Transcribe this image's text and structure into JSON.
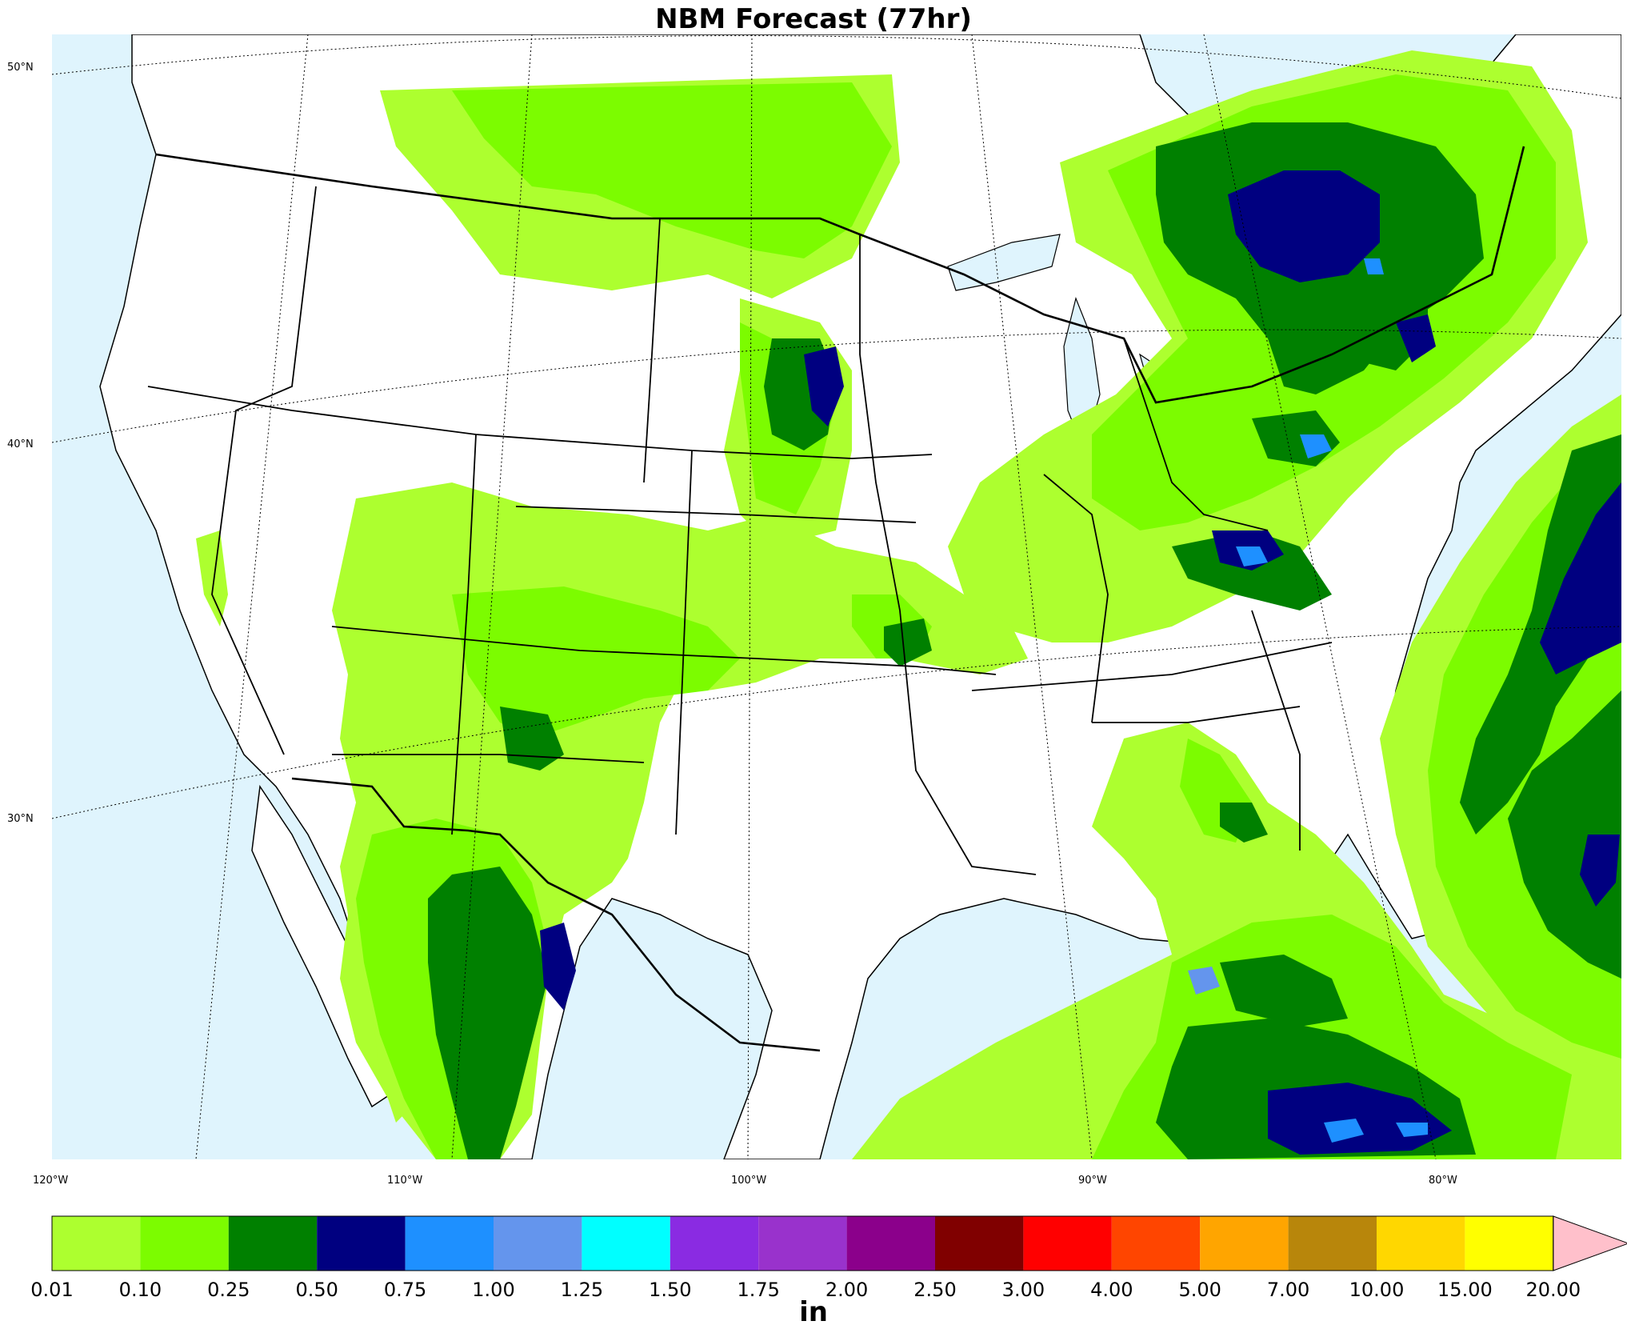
{
  "title": "NBM Forecast (77hr)",
  "units_label": "in",
  "lat_ticks": [
    "50°N",
    "40°N",
    "30°N"
  ],
  "lon_ticks": [
    "120°W",
    "110°W",
    "100°W",
    "90°W",
    "80°W"
  ],
  "colors": {
    "ocean": "#dff4fd",
    "land": "#ffffff",
    "boundary": "#000000"
  },
  "colorbar": {
    "levels": [
      "0.01",
      "0.10",
      "0.25",
      "0.50",
      "0.75",
      "1.00",
      "1.25",
      "1.50",
      "1.75",
      "2.00",
      "2.50",
      "3.00",
      "4.00",
      "5.00",
      "7.00",
      "10.00",
      "15.00",
      "20.00"
    ],
    "colors": [
      "#adff2f",
      "#7cfc00",
      "#008000",
      "#000080",
      "#1e90ff",
      "#6495ed",
      "#00ffff",
      "#8a2be2",
      "#9932cc",
      "#8b008b",
      "#800000",
      "#ff0000",
      "#ff4500",
      "#ffa500",
      "#b8860b",
      "#ffd700",
      "#ffff00"
    ],
    "extend_color": "#ffc0cb"
  }
}
